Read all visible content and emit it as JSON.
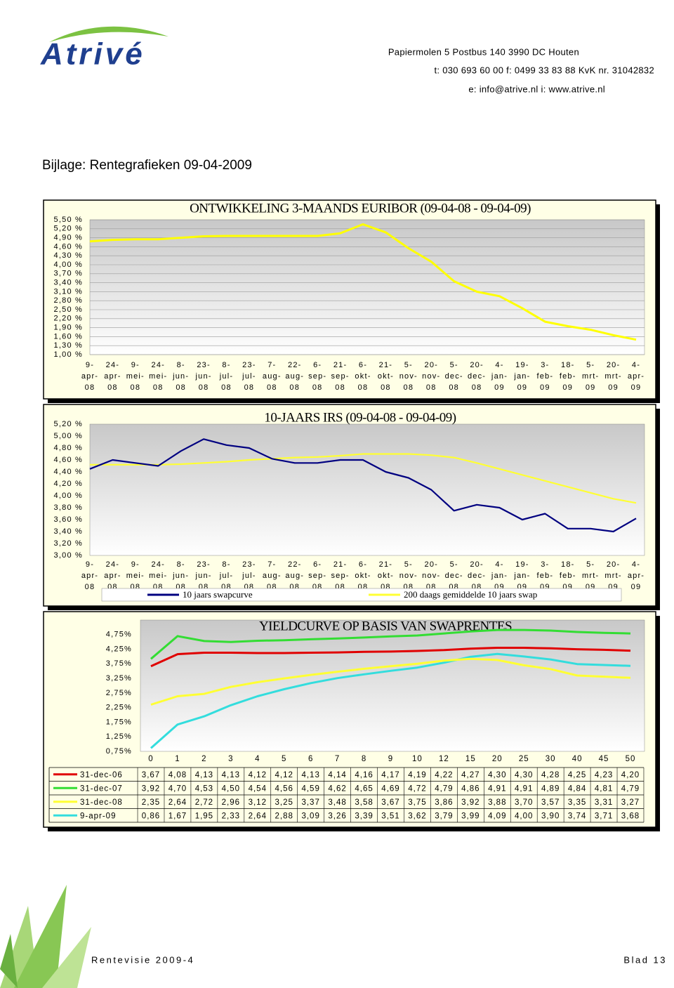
{
  "header": {
    "logo": "Atrivé",
    "address": "Papiermolen 5  Postbus 140  3990 DC  Houten",
    "phone": "t: 030 693 60 00  f: 0499 33 83 88  KvK nr. 31042832",
    "web": "e: info@atrive.nl  i: www.atrive.nl"
  },
  "title": "Bijlage: Rentegrafieken 09-04-2009",
  "chart_data": [
    {
      "type": "line",
      "title": "ONTWIKKELING 3-MAANDS EURIBOR (09-04-08 - 09-04-09)",
      "categories": [
        "9-apr-08",
        "24-apr-08",
        "9-mei-08",
        "24-mei-08",
        "8-jun-08",
        "23-jun-08",
        "8-jul-08",
        "23-jul-08",
        "7-aug-08",
        "22-aug-08",
        "6-sep-08",
        "21-sep-08",
        "6-okt-08",
        "21-okt-08",
        "5-nov-08",
        "20-nov-08",
        "5-dec-08",
        "20-dec-08",
        "4-jan-09",
        "19-jan-09",
        "3-feb-09",
        "18-feb-09",
        "5-mrt-09",
        "20-mrt-09",
        "4-apr-09"
      ],
      "values": [
        4.78,
        4.83,
        4.85,
        4.85,
        4.9,
        4.95,
        4.96,
        4.96,
        4.96,
        4.96,
        4.96,
        5.05,
        5.35,
        5.08,
        4.55,
        4.1,
        3.45,
        3.1,
        2.95,
        2.55,
        2.1,
        1.95,
        1.83,
        1.65,
        1.5
      ],
      "color": "#ffff00",
      "ylim": [
        1.0,
        5.5
      ],
      "yticks": [
        {
          "value": 1.0,
          "label": "1,00 %"
        },
        {
          "value": 1.3,
          "label": "1,30 %"
        },
        {
          "value": 1.6,
          "label": "1,60 %"
        },
        {
          "value": 1.9,
          "label": "1,90 %"
        },
        {
          "value": 2.2,
          "label": "2,20 %"
        },
        {
          "value": 2.5,
          "label": "2,50 %"
        },
        {
          "value": 2.8,
          "label": "2,80 %"
        },
        {
          "value": 3.1,
          "label": "3,10 %"
        },
        {
          "value": 3.4,
          "label": "3,40 %"
        },
        {
          "value": 3.7,
          "label": "3,70 %"
        },
        {
          "value": 4.0,
          "label": "4,00 %"
        },
        {
          "value": 4.3,
          "label": "4,30 %"
        },
        {
          "value": 4.6,
          "label": "4,60 %"
        },
        {
          "value": 4.9,
          "label": "4,90 %"
        },
        {
          "value": 5.2,
          "label": "5,20 %"
        },
        {
          "value": 5.5,
          "label": "5,50 %"
        }
      ],
      "grid": true
    },
    {
      "type": "line",
      "title": "10-JAARS IRS (09-04-08 - 09-04-09)",
      "categories": [
        "9-apr-08",
        "24-apr-08",
        "9-mei-08",
        "24-mei-08",
        "8-jun-08",
        "23-jun-08",
        "8-jul-08",
        "23-jul-08",
        "7-aug-08",
        "22-aug-08",
        "6-sep-08",
        "21-sep-08",
        "6-okt-08",
        "21-okt-08",
        "5-nov-08",
        "20-nov-08",
        "5-dec-08",
        "20-dec-08",
        "4-jan-09",
        "19-jan-09",
        "3-feb-09",
        "18-feb-09",
        "5-mrt-09",
        "20-mrt-09",
        "4-apr-09"
      ],
      "series": [
        {
          "name": "10 jaars swapcurve",
          "color": "#000080",
          "values": [
            4.45,
            4.6,
            4.55,
            4.5,
            4.75,
            4.95,
            4.85,
            4.8,
            4.62,
            4.55,
            4.55,
            4.6,
            4.6,
            4.4,
            4.3,
            4.1,
            3.75,
            3.85,
            3.8,
            3.6,
            3.7,
            3.45,
            3.45,
            3.4,
            3.62
          ]
        },
        {
          "name": "200 daags gemiddelde 10 jaars swap",
          "color": "#ffff33",
          "values": [
            4.52,
            4.52,
            4.52,
            4.52,
            4.53,
            4.55,
            4.57,
            4.6,
            4.62,
            4.64,
            4.65,
            4.67,
            4.7,
            4.7,
            4.7,
            4.68,
            4.64,
            4.55,
            4.45,
            4.35,
            4.25,
            4.15,
            4.05,
            3.95,
            3.88
          ]
        }
      ],
      "ylim": [
        3.0,
        5.2
      ],
      "yticks": [
        {
          "value": 3.0,
          "label": "3,00 %"
        },
        {
          "value": 3.2,
          "label": "3,20 %"
        },
        {
          "value": 3.4,
          "label": "3,40 %"
        },
        {
          "value": 3.6,
          "label": "3,60 %"
        },
        {
          "value": 3.8,
          "label": "3,80 %"
        },
        {
          "value": 4.0,
          "label": "4,00 %"
        },
        {
          "value": 4.2,
          "label": "4,20 %"
        },
        {
          "value": 4.4,
          "label": "4,40 %"
        },
        {
          "value": 4.6,
          "label": "4,60 %"
        },
        {
          "value": 4.8,
          "label": "4,80 %"
        },
        {
          "value": 5.0,
          "label": "5,00 %"
        },
        {
          "value": 5.2,
          "label": "5,20 %"
        }
      ],
      "grid": false
    },
    {
      "type": "line",
      "title": "YIELDCURVE OP BASIS VAN SWAPRENTES",
      "categories": [
        "0",
        "1",
        "2",
        "3",
        "4",
        "5",
        "6",
        "7",
        "8",
        "9",
        "10",
        "12",
        "15",
        "20",
        "25",
        "30",
        "40",
        "45",
        "50"
      ],
      "series": [
        {
          "name": "31-dec-06",
          "color": "#e00000",
          "values": [
            3.67,
            4.08,
            4.13,
            4.13,
            4.12,
            4.12,
            4.13,
            4.14,
            4.16,
            4.17,
            4.19,
            4.22,
            4.27,
            4.3,
            4.3,
            4.28,
            4.25,
            4.23,
            4.2
          ],
          "value_labels": [
            "3,67",
            "4,08",
            "4,13",
            "4,13",
            "4,12",
            "4,12",
            "4,13",
            "4,14",
            "4,16",
            "4,17",
            "4,19",
            "4,22",
            "4,27",
            "4,30",
            "4,30",
            "4,28",
            "4,25",
            "4,23",
            "4,20"
          ]
        },
        {
          "name": "31-dec-07",
          "color": "#33dd33",
          "values": [
            3.92,
            4.7,
            4.53,
            4.5,
            4.54,
            4.56,
            4.59,
            4.62,
            4.65,
            4.69,
            4.72,
            4.79,
            4.86,
            4.91,
            4.91,
            4.89,
            4.84,
            4.81,
            4.79
          ],
          "value_labels": [
            "3,92",
            "4,70",
            "4,53",
            "4,50",
            "4,54",
            "4,56",
            "4,59",
            "4,62",
            "4,65",
            "4,69",
            "4,72",
            "4,79",
            "4,86",
            "4,91",
            "4,91",
            "4,89",
            "4,84",
            "4,81",
            "4,79"
          ]
        },
        {
          "name": "31-dec-08",
          "color": "#ffff33",
          "values": [
            2.35,
            2.64,
            2.72,
            2.96,
            3.12,
            3.25,
            3.37,
            3.48,
            3.58,
            3.67,
            3.75,
            3.86,
            3.92,
            3.88,
            3.7,
            3.57,
            3.35,
            3.31,
            3.27
          ],
          "value_labels": [
            "2,35",
            "2,64",
            "2,72",
            "2,96",
            "3,12",
            "3,25",
            "3,37",
            "3,48",
            "3,58",
            "3,67",
            "3,75",
            "3,86",
            "3,92",
            "3,88",
            "3,70",
            "3,57",
            "3,35",
            "3,31",
            "3,27"
          ]
        },
        {
          "name": "9-apr-09",
          "color": "#33dddd",
          "values": [
            0.86,
            1.67,
            1.95,
            2.33,
            2.64,
            2.88,
            3.09,
            3.26,
            3.39,
            3.51,
            3.62,
            3.79,
            3.99,
            4.09,
            4.0,
            3.9,
            3.74,
            3.71,
            3.68
          ],
          "value_labels": [
            "0,86",
            "1,67",
            "1,95",
            "2,33",
            "2,64",
            "2,88",
            "3,09",
            "3,26",
            "3,39",
            "3,51",
            "3,62",
            "3,79",
            "3,99",
            "4,09",
            "4,00",
            "3,90",
            "3,74",
            "3,71",
            "3,68"
          ]
        }
      ],
      "ylim": [
        0.75,
        5.25
      ],
      "yticks": [
        {
          "value": 0.75,
          "label": "0,75%"
        },
        {
          "value": 1.25,
          "label": "1,25%"
        },
        {
          "value": 1.75,
          "label": "1,75%"
        },
        {
          "value": 2.25,
          "label": "2,25%"
        },
        {
          "value": 2.75,
          "label": "2,75%"
        },
        {
          "value": 3.25,
          "label": "3,25%"
        },
        {
          "value": 3.75,
          "label": "3,75%"
        },
        {
          "value": 4.25,
          "label": "4,25%"
        },
        {
          "value": 4.75,
          "label": "4,75%"
        }
      ],
      "grid": false
    }
  ],
  "footer": {
    "left": "Rentevisie 2009-4",
    "right": "Blad 13"
  }
}
